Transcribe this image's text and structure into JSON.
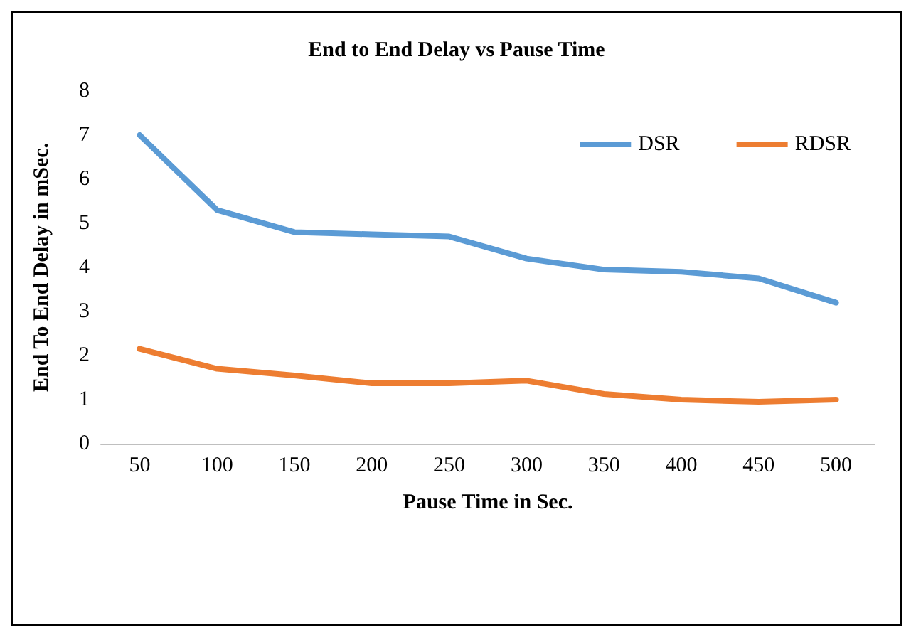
{
  "chart_data": {
    "type": "line",
    "title": "End to End Delay vs Pause Time",
    "xlabel": "Pause Time in Sec.",
    "ylabel": "End To End Delay in mSec.",
    "categories": [
      "50",
      "100",
      "150",
      "200",
      "250",
      "300",
      "350",
      "400",
      "450",
      "500"
    ],
    "series": [
      {
        "name": "DSR",
        "color": "#5b9bd5",
        "values": [
          7.0,
          5.3,
          4.8,
          4.75,
          4.7,
          4.2,
          3.95,
          3.9,
          3.75,
          3.2
        ]
      },
      {
        "name": "RDSR",
        "color": "#ed7d31",
        "values": [
          2.15,
          1.7,
          1.55,
          1.37,
          1.37,
          1.43,
          1.13,
          1.0,
          0.95,
          1.0
        ]
      }
    ],
    "ylim": [
      0,
      8
    ],
    "yticks": [
      0,
      1,
      2,
      3,
      4,
      5,
      6,
      7,
      8
    ],
    "grid": false,
    "legend": "top right",
    "marker": "none",
    "line_style": "solid"
  }
}
